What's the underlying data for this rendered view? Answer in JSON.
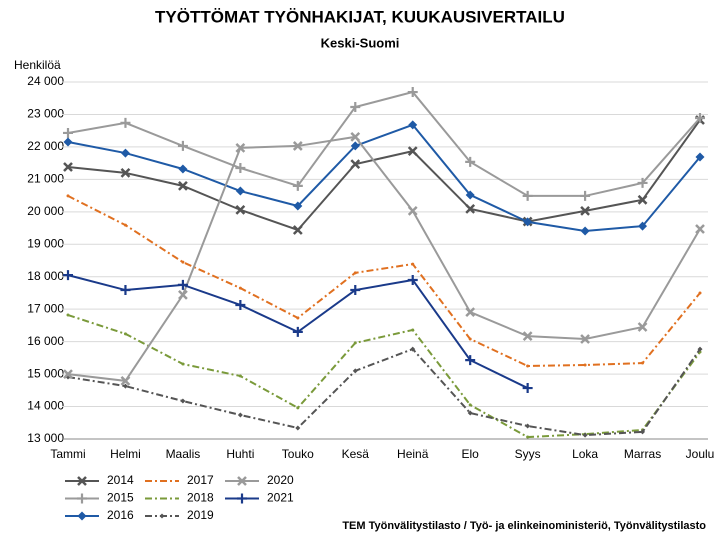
{
  "chart_data": {
    "type": "line",
    "title": "TYÖTTÖMAT TYÖNHAKIJAT, KUUKAUSIVERTAILU",
    "subtitle": "Keski-Suomi",
    "y_label": "Henkilöä",
    "source": "TEM Työnvälitystilasto / Työ- ja elinkeinoministeriö, Työnvälitystilasto",
    "categories": [
      "Tammi",
      "Helmi",
      "Maalis",
      "Huhti",
      "Touko",
      "Kesä",
      "Heinä",
      "Elo",
      "Syys",
      "Loka",
      "Marras",
      "Joulu"
    ],
    "ylim": [
      13000,
      24000
    ],
    "yticks": [
      {
        "value": 13000,
        "label": "13 000"
      },
      {
        "value": 14000,
        "label": "14 000"
      },
      {
        "value": 15000,
        "label": "15 000"
      },
      {
        "value": 16000,
        "label": "16 000"
      },
      {
        "value": 17000,
        "label": "17 000"
      },
      {
        "value": 18000,
        "label": "18 000"
      },
      {
        "value": 19000,
        "label": "19 000"
      },
      {
        "value": 20000,
        "label": "20 000"
      },
      {
        "value": 21000,
        "label": "21 000"
      },
      {
        "value": 22000,
        "label": "22 000"
      },
      {
        "value": 23000,
        "label": "23 000"
      },
      {
        "value": 24000,
        "label": "24 000"
      }
    ],
    "grid": true,
    "legend": "bottom-left",
    "series": [
      {
        "name": "2014",
        "color": "#555555",
        "marker": "x",
        "dash": false,
        "values": [
          21380,
          21200,
          20800,
          20060,
          19440,
          21470,
          21870,
          20090,
          19700,
          20030,
          20370,
          22830
        ]
      },
      {
        "name": "2015",
        "color": "#9a9a9a",
        "marker": "plus",
        "dash": false,
        "values": [
          22430,
          22740,
          22030,
          21350,
          20800,
          23230,
          23690,
          21540,
          20490,
          20490,
          20890,
          22890
        ]
      },
      {
        "name": "2016",
        "color": "#1f5aa6",
        "marker": "diamond",
        "dash": false,
        "values": [
          22150,
          21810,
          21320,
          20640,
          20180,
          22030,
          22680,
          20520,
          19690,
          19410,
          19560,
          21690
        ]
      },
      {
        "name": "2017",
        "color": "#e07020",
        "marker": "dot",
        "dash": true,
        "values": [
          20490,
          19590,
          18450,
          17650,
          16730,
          18120,
          18390,
          16080,
          15250,
          15280,
          15340,
          17500
        ]
      },
      {
        "name": "2018",
        "color": "#7a9a3a",
        "marker": "dot",
        "dash": true,
        "values": [
          16820,
          16240,
          15310,
          14940,
          13960,
          15960,
          16360,
          14050,
          13060,
          13150,
          13280,
          15680
        ]
      },
      {
        "name": "2019",
        "color": "#555555",
        "marker": "diamond",
        "dash": true,
        "values": [
          14910,
          14630,
          14170,
          13740,
          13340,
          15100,
          15770,
          13800,
          13400,
          13120,
          13220,
          15770
        ]
      },
      {
        "name": "2020",
        "color": "#9a9a9a",
        "marker": "x",
        "dash": false,
        "values": [
          15000,
          14790,
          17440,
          21970,
          22030,
          22310,
          20030,
          16910,
          16170,
          16080,
          16450,
          19470
        ]
      },
      {
        "name": "2021",
        "color": "#1a3a8a",
        "marker": "plus",
        "dash": false,
        "values": [
          18050,
          17590,
          17750,
          17130,
          16300,
          17590,
          17900,
          15430,
          14570,
          null,
          null,
          null
        ]
      }
    ]
  }
}
